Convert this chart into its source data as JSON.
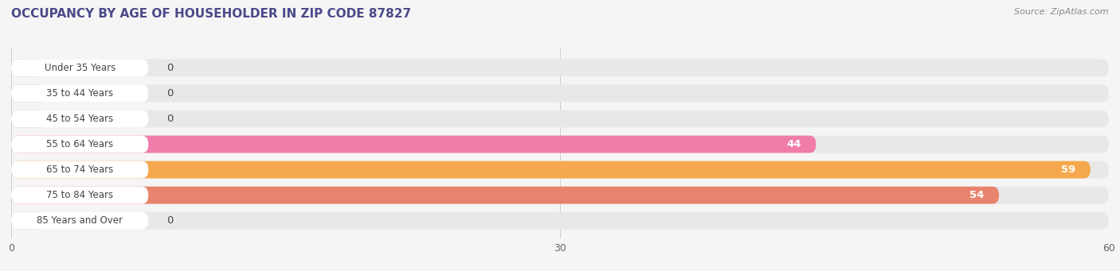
{
  "title": "OCCUPANCY BY AGE OF HOUSEHOLDER IN ZIP CODE 87827",
  "source": "Source: ZipAtlas.com",
  "categories": [
    "Under 35 Years",
    "35 to 44 Years",
    "45 to 54 Years",
    "55 to 64 Years",
    "65 to 74 Years",
    "75 to 84 Years",
    "85 Years and Over"
  ],
  "values": [
    0,
    0,
    0,
    44,
    59,
    54,
    0
  ],
  "bar_colors": [
    "#d4b0d8",
    "#7ececa",
    "#a8aee8",
    "#f07caa",
    "#f5a84e",
    "#e8836e",
    "#a8c8f0"
  ],
  "xlim_max": 60,
  "xticks": [
    0,
    30,
    60
  ],
  "bg_color": "#f5f5f5",
  "bar_bg_color": "#e8e8e8",
  "title_fontsize": 11,
  "source_fontsize": 8,
  "bar_height": 0.68,
  "label_white": "#ffffff",
  "label_dark": "#444444",
  "title_color": "#4a4a8a",
  "white_pill_color": "#ffffff"
}
